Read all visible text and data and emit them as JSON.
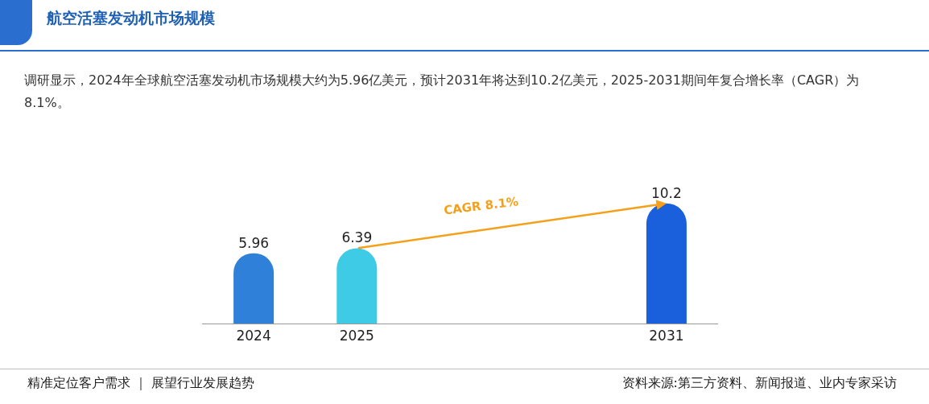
{
  "chart_data": {
    "type": "bar",
    "title": "航空活塞发动机市场规模",
    "subtitle": "调研显示，2024年全球航空活塞发动机市场规模大约为5.96亿美元，预计2031年将达到10.2亿美元，2025-2031期间年复合增长率（CAGR）为8.1%。",
    "categories": [
      "2024",
      "2025",
      null,
      null,
      "2031"
    ],
    "values": [
      5.96,
      6.39,
      null,
      null,
      10.2
    ],
    "colors": [
      "#2f80d8",
      "#3ecbe6",
      "#ffffff",
      "#ffffff",
      "#1a5fdc"
    ],
    "data_labels": true,
    "annotations": [
      "CAGR 8.1%",
      "精准定位客户需求 ｜ 展望行业发展趋势",
      "资料来源:第三方资料、新闻报道、业内专家采访"
    ]
  }
}
